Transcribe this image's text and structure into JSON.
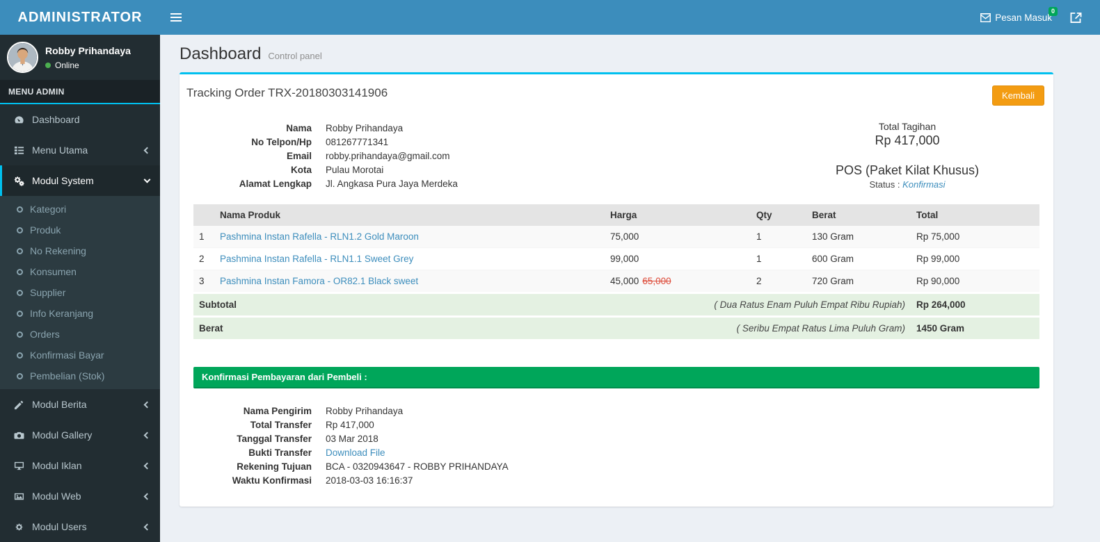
{
  "colors": {
    "navbar": "#3c8dbc",
    "sidebar": "#222d32",
    "accent": "#00c0ef",
    "success": "#00a65a",
    "warning": "#f39c12",
    "link": "#3c8dbc",
    "danger": "#dd4b39"
  },
  "navbar": {
    "brand": "ADMINISTRATOR",
    "messages_label": "Pesan Masuk",
    "messages_badge": "0"
  },
  "sidebar": {
    "user": {
      "name": "Robby Prihandaya",
      "status": "Online"
    },
    "section_label": "MENU ADMIN",
    "items": [
      {
        "label": "Dashboard",
        "icon": "dashboard-icon"
      },
      {
        "label": "Menu Utama",
        "icon": "list-icon",
        "chevron": "left"
      },
      {
        "label": "Modul System",
        "icon": "gears-icon",
        "chevron": "down",
        "active": true,
        "children": [
          "Kategori",
          "Produk",
          "No Rekening",
          "Konsumen",
          "Supplier",
          "Info Keranjang",
          "Orders",
          "Konfirmasi Bayar",
          "Pembelian (Stok)"
        ]
      },
      {
        "label": "Modul Berita",
        "icon": "pencil-icon",
        "chevron": "left"
      },
      {
        "label": "Modul Gallery",
        "icon": "camera-icon",
        "chevron": "left"
      },
      {
        "label": "Modul Iklan",
        "icon": "desktop-icon",
        "chevron": "left"
      },
      {
        "label": "Modul Web",
        "icon": "image-icon",
        "chevron": "left"
      },
      {
        "label": "Modul Users",
        "icon": "gear-icon",
        "chevron": "left"
      }
    ]
  },
  "content": {
    "page_title": "Dashboard",
    "page_subtitle": "Control panel",
    "card": {
      "title": "Tracking Order TRX-20180303141906",
      "back_button": "Kembali",
      "customer": {
        "rows": [
          {
            "label": "Nama",
            "value": "Robby Prihandaya"
          },
          {
            "label": "No Telpon/Hp",
            "value": "081267771341"
          },
          {
            "label": "Email",
            "value": "robby.prihandaya@gmail.com"
          },
          {
            "label": "Kota",
            "value": "Pulau Morotai"
          },
          {
            "label": "Alamat Lengkap",
            "value": "Jl. Angkasa Pura Jaya Merdeka"
          }
        ]
      },
      "summary": {
        "total_label": "Total Tagihan",
        "total_value": "Rp 417,000",
        "shipping": "POS (Paket Kilat Khusus)",
        "status_label": "Status :",
        "status_value": "Konfirmasi"
      },
      "table": {
        "headers": [
          "Nama Produk",
          "Harga",
          "Qty",
          "Berat",
          "Total"
        ],
        "rows": [
          {
            "no": "1",
            "name": "Pashmina Instan Rafella - RLN1.2 Gold Maroon",
            "price": "75,000",
            "old_price": "",
            "qty": "1",
            "weight": "130 Gram",
            "total": "Rp 75,000"
          },
          {
            "no": "2",
            "name": "Pashmina Instan Rafella - RLN1.1 Sweet Grey",
            "price": "99,000",
            "old_price": "",
            "qty": "1",
            "weight": "600 Gram",
            "total": "Rp 99,000"
          },
          {
            "no": "3",
            "name": "Pashmina Instan Famora - OR82.1 Black sweet",
            "price": "45,000",
            "old_price": "65,000",
            "qty": "2",
            "weight": "720 Gram",
            "total": "Rp 90,000"
          }
        ],
        "subtotal": {
          "label": "Subtotal",
          "words": "( Dua Ratus Enam Puluh Empat Ribu Rupiah)",
          "value": "Rp 264,000"
        },
        "weight_row": {
          "label": "Berat",
          "words": "( Seribu Empat Ratus Lima Puluh Gram)",
          "value": "1450 Gram"
        }
      },
      "payment": {
        "banner": "Konfirmasi Pembayaran dari Pembeli :",
        "rows": [
          {
            "label": "Nama Pengirim",
            "value": "Robby Prihandaya"
          },
          {
            "label": "Total Transfer",
            "value": "Rp 417,000"
          },
          {
            "label": "Tanggal Transfer",
            "value": "03 Mar 2018"
          },
          {
            "label": "Bukti Transfer",
            "value": "Download File",
            "link": true
          },
          {
            "label": "Rekening Tujuan",
            "value": "BCA - 0320943647 - ROBBY PRIHANDAYA"
          },
          {
            "label": "Waktu Konfirmasi",
            "value": "2018-03-03 16:16:37"
          }
        ]
      }
    }
  }
}
